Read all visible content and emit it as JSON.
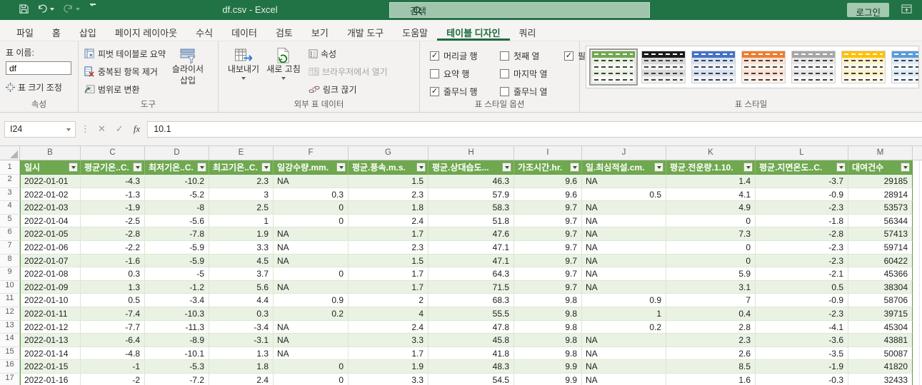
{
  "titlebar": {
    "title": "df.csv  -  Excel",
    "search_placeholder": "검색",
    "login_label": "로그인"
  },
  "menu": {
    "tabs": [
      {
        "label": "파일",
        "active": false
      },
      {
        "label": "홈",
        "active": false
      },
      {
        "label": "삽입",
        "active": false
      },
      {
        "label": "페이지 레이아웃",
        "active": false
      },
      {
        "label": "수식",
        "active": false
      },
      {
        "label": "데이터",
        "active": false
      },
      {
        "label": "검토",
        "active": false
      },
      {
        "label": "보기",
        "active": false
      },
      {
        "label": "개발 도구",
        "active": false
      },
      {
        "label": "도움말",
        "active": false
      },
      {
        "label": "테이블 디자인",
        "active": true
      },
      {
        "label": "쿼리",
        "active": false
      }
    ]
  },
  "ribbon": {
    "properties_group": {
      "title": "속성",
      "table_name_label": "표 이름:",
      "table_name_value": "df",
      "resize_label": "표 크기 조정"
    },
    "tools_group": {
      "title": "도구",
      "pivot_label": "피벗 테이블로 요약",
      "remove_dup_label": "중복된 항목 제거",
      "convert_range_label": "범위로 변환",
      "insert_slicer_label": "슬라이서 삽입"
    },
    "external_group": {
      "title": "외부 표 데이터",
      "export_label": "내보내기",
      "refresh_label": "새로 고침",
      "props_label": "속성",
      "open_browser_label": "브라우저에서 열기",
      "unlink_label": "링크 끊기"
    },
    "style_options_group": {
      "title": "표 스타일 옵션",
      "options": [
        {
          "label": "머리글 행",
          "checked": true
        },
        {
          "label": "요약 행",
          "checked": false
        },
        {
          "label": "줄무늬 행",
          "checked": true
        },
        {
          "label": "첫째 열",
          "checked": false
        },
        {
          "label": "마지막 열",
          "checked": false
        },
        {
          "label": "줄무늬 열",
          "checked": false
        },
        {
          "label": "필터 단추",
          "checked": true
        }
      ]
    },
    "styles_group": {
      "title": "표 스타일",
      "swatches": [
        {
          "name": "green",
          "header": "#6fa84f",
          "row_a": "#e9f1e2",
          "row_b": "#f8fbf4",
          "selected": true
        },
        {
          "name": "black",
          "header": "#1a1a1a",
          "row_a": "#d9d9d9",
          "row_b": "#f2f2f2",
          "selected": false
        },
        {
          "name": "blue",
          "header": "#4472c4",
          "row_a": "#d7e1f2",
          "row_b": "#eef2fa",
          "selected": false
        },
        {
          "name": "orange",
          "header": "#ed7d31",
          "row_a": "#fbe2d5",
          "row_b": "#fdf1ea",
          "selected": false
        },
        {
          "name": "gray",
          "header": "#a5a5a5",
          "row_a": "#e7e7e7",
          "row_b": "#f6f6f6",
          "selected": false
        },
        {
          "name": "gold",
          "header": "#ffc000",
          "row_a": "#fff2cc",
          "row_b": "#fffaeb",
          "selected": false
        },
        {
          "name": "light-blue",
          "header": "#5b9bd5",
          "row_a": "#ddebf7",
          "row_b": "#f2f8fd",
          "selected": false
        }
      ]
    }
  },
  "formula_bar": {
    "name_box": "I24",
    "cancel": "✕",
    "enter": "✓",
    "fx_label": "fx",
    "value": "10.1"
  },
  "grid": {
    "column_letters": [
      "B",
      "C",
      "D",
      "E",
      "F",
      "G",
      "H",
      "I",
      "J",
      "K",
      "L",
      "M"
    ],
    "row_numbers_start": 1,
    "table": {
      "headers": [
        "일시",
        "평균기온..C.",
        "최저기온..C.",
        "최고기온..C.",
        "일강수량.mm.",
        "평균.풍속.m.s.",
        "평균.상대습도...",
        "가조시간.hr.",
        "일.최심적설.cm.",
        "평균.전운량.1.10.",
        "평균.지면온도..C.",
        "대여건수"
      ],
      "rows": [
        [
          "2022-01-01",
          "-4.3",
          "-10.2",
          "2.3",
          "NA",
          "1.5",
          "46.3",
          "9.6",
          "NA",
          "1.4",
          "-3.7",
          "29185"
        ],
        [
          "2022-01-02",
          "-1.3",
          "-5.2",
          "3",
          "0.3",
          "2.3",
          "57.9",
          "9.6",
          "0.5",
          "4.1",
          "-0.9",
          "28914"
        ],
        [
          "2022-01-03",
          "-1.9",
          "-8",
          "2.5",
          "0",
          "1.8",
          "58.3",
          "9.7",
          "NA",
          "4.9",
          "-2.3",
          "53573"
        ],
        [
          "2022-01-04",
          "-2.5",
          "-5.6",
          "1",
          "0",
          "2.4",
          "51.8",
          "9.7",
          "NA",
          "0",
          "-1.8",
          "56344"
        ],
        [
          "2022-01-05",
          "-2.8",
          "-7.8",
          "1.9",
          "NA",
          "1.7",
          "47.6",
          "9.7",
          "NA",
          "7.3",
          "-2.8",
          "57413"
        ],
        [
          "2022-01-06",
          "-2.2",
          "-5.9",
          "3.3",
          "NA",
          "2.3",
          "47.1",
          "9.7",
          "NA",
          "0",
          "-2.3",
          "59714"
        ],
        [
          "2022-01-07",
          "-1.6",
          "-5.9",
          "4.5",
          "NA",
          "1.5",
          "47.1",
          "9.7",
          "NA",
          "0",
          "-2.3",
          "60422"
        ],
        [
          "2022-01-08",
          "0.3",
          "-5",
          "3.7",
          "0",
          "1.7",
          "64.3",
          "9.7",
          "NA",
          "5.9",
          "-2.1",
          "45366"
        ],
        [
          "2022-01-09",
          "1.3",
          "-1.2",
          "5.6",
          "NA",
          "1.7",
          "71.5",
          "9.7",
          "NA",
          "3.1",
          "0.5",
          "38304"
        ],
        [
          "2022-01-10",
          "0.5",
          "-3.4",
          "4.4",
          "0.9",
          "2",
          "68.3",
          "9.8",
          "0.9",
          "7",
          "-0.9",
          "58706"
        ],
        [
          "2022-01-11",
          "-7.4",
          "-10.3",
          "0.3",
          "0.2",
          "4",
          "55.5",
          "9.8",
          "1",
          "0.4",
          "-2.3",
          "39715"
        ],
        [
          "2022-01-12",
          "-7.7",
          "-11.3",
          "-3.4",
          "NA",
          "2.4",
          "47.8",
          "9.8",
          "0.2",
          "2.8",
          "-4.1",
          "45304"
        ],
        [
          "2022-01-13",
          "-6.4",
          "-8.9",
          "-3.1",
          "NA",
          "3.3",
          "45.8",
          "9.8",
          "NA",
          "2.3",
          "-3.6",
          "43881"
        ],
        [
          "2022-01-14",
          "-4.8",
          "-10.1",
          "1.3",
          "NA",
          "1.7",
          "41.8",
          "9.8",
          "NA",
          "2.6",
          "-3.5",
          "50087"
        ],
        [
          "2022-01-15",
          "-1",
          "-5.3",
          "1.8",
          "0",
          "1.9",
          "48.3",
          "9.9",
          "NA",
          "8.5",
          "-1.9",
          "41820"
        ],
        [
          "2022-01-16",
          "-2",
          "-7.2",
          "2.4",
          "0",
          "3.3",
          "54.5",
          "9.9",
          "NA",
          "1.6",
          "-0.3",
          "32433"
        ]
      ]
    }
  }
}
